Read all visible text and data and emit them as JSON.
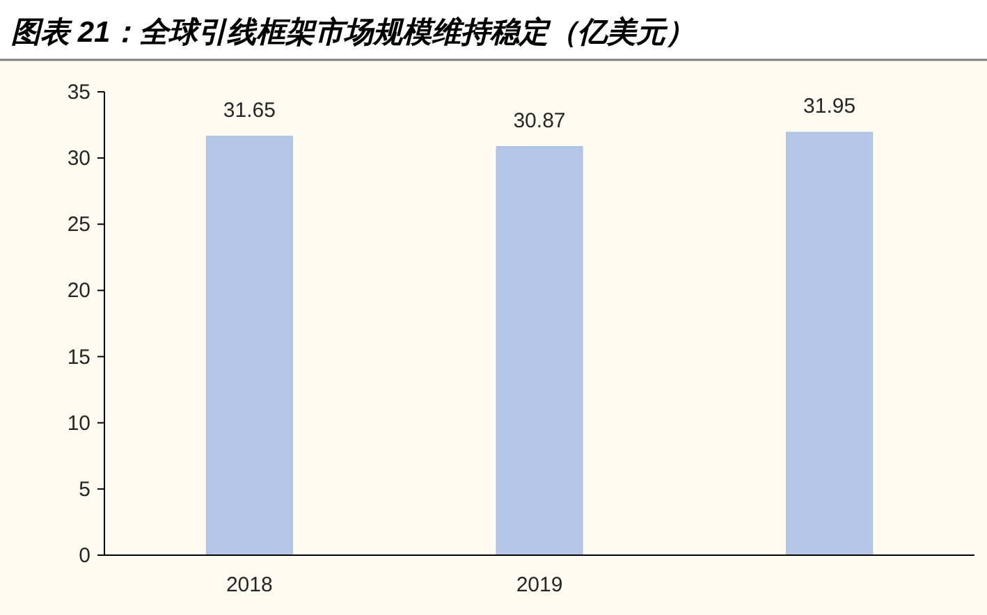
{
  "chart_data": {
    "type": "bar",
    "title": "图表 21：全球引线框架市场规模维持稳定（亿美元）",
    "categories": [
      "2018",
      "2019",
      null
    ],
    "values": [
      31.65,
      30.87,
      31.95
    ],
    "color": "#b4c7e7",
    "ylim": [
      0,
      35
    ],
    "yticks": [
      0,
      5,
      10,
      15,
      20,
      25,
      30,
      35
    ],
    "data_labels": true
  }
}
